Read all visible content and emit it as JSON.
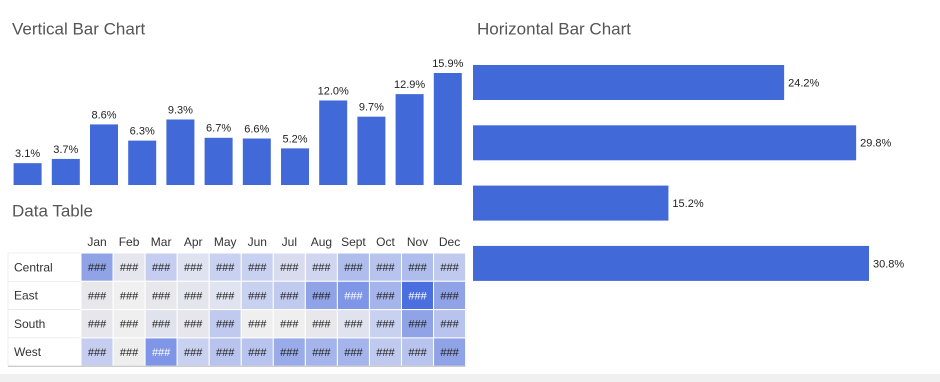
{
  "chart_data": [
    {
      "type": "bar",
      "title": "Vertical Bar Chart",
      "categories": [
        null,
        null,
        null,
        null,
        null,
        null,
        null,
        null,
        null,
        null,
        null,
        null
      ],
      "values": [
        3.1,
        3.7,
        8.6,
        6.3,
        9.3,
        6.7,
        6.6,
        5.2,
        12.0,
        9.7,
        12.9,
        15.9
      ],
      "value_labels": [
        "3.1%",
        "3.7%",
        "8.6%",
        "6.3%",
        "9.3%",
        "6.7%",
        "6.6%",
        "5.2%",
        "12.0%",
        "9.7%",
        "12.9%",
        "15.9%"
      ],
      "color": "#4169d8"
    },
    {
      "type": "barh",
      "title": "Horizontal Bar Chart",
      "categories": [
        null,
        null,
        null,
        null
      ],
      "values": [
        24.2,
        29.8,
        15.2,
        30.8
      ],
      "value_labels": [
        "24.2%",
        "29.8%",
        "15.2%",
        "30.8%"
      ],
      "color": "#4169d8"
    },
    {
      "type": "heatmap",
      "title": "Data Table",
      "columns": [
        "Jan",
        "Feb",
        "Mar",
        "Apr",
        "May",
        "Jun",
        "Jul",
        "Aug",
        "Sept",
        "Oct",
        "Nov",
        "Dec"
      ],
      "rows": [
        "Central",
        "East",
        "South",
        "West"
      ],
      "cells": [
        [
          "###",
          "###",
          "###",
          "###",
          "###",
          "###",
          "###",
          "###",
          "###",
          "###",
          "###",
          "###"
        ],
        [
          "###",
          "###",
          "###",
          "###",
          "###",
          "###",
          "###",
          "###",
          "###",
          "###",
          "###",
          "###"
        ],
        [
          "###",
          "###",
          "###",
          "###",
          "###",
          "###",
          "###",
          "###",
          "###",
          "###",
          "###",
          "###"
        ],
        [
          "###",
          "###",
          "###",
          "###",
          "###",
          "###",
          "###",
          "###",
          "###",
          "###",
          "###",
          "###"
        ]
      ],
      "colors": [
        [
          "#8fa3e6",
          "#e6e6ee",
          "#c5cef0",
          "#dfe2f0",
          "#c9d1f0",
          "#c9d1f0",
          "#d9dcee",
          "#d0d6f0",
          "#aebdec",
          "#b8c4ee",
          "#aebdec",
          "#c0caee"
        ],
        [
          "#e8e8ec",
          "#f0f0f0",
          "#e8e8ec",
          "#e4e6ee",
          "#e0e3f0",
          "#c9d1f0",
          "#c0caee",
          "#8fa3e6",
          "#7f95e8",
          "#a5b5ec",
          "#4c6fe0",
          "#8fa3e6"
        ],
        [
          "#e6e6ec",
          "#efefef",
          "#e0e3ee",
          "#e6e6ec",
          "#c0caee",
          "#efefef",
          "#efefef",
          "#e8e8ec",
          "#e0e3ee",
          "#c9d1f0",
          "#8fa3e6",
          "#b8c4ee"
        ],
        [
          "#c5cef0",
          "#eeeeee",
          "#7f95e8",
          "#c9d1f0",
          "#b8c4ee",
          "#b8c4ee",
          "#99abe8",
          "#a5b5ec",
          "#a5b5ec",
          "#c0caee",
          "#b8c4ee",
          "#8fa3e6"
        ]
      ]
    }
  ]
}
